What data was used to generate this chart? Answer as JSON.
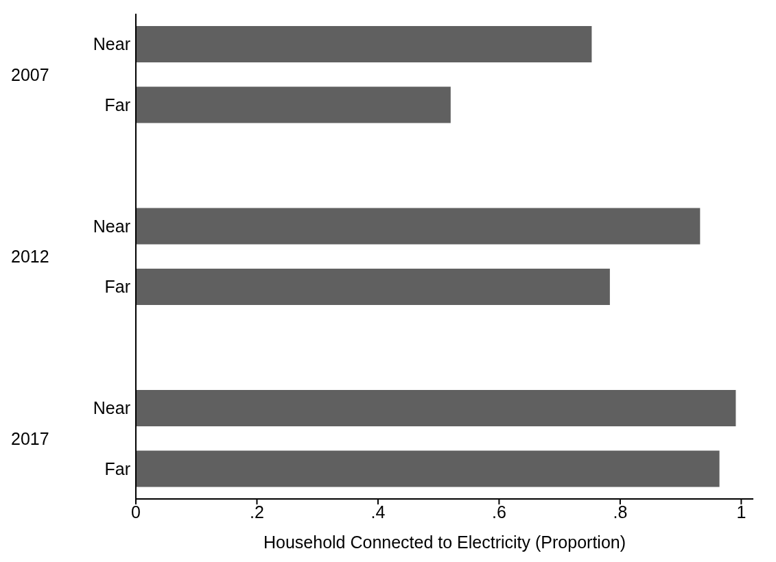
{
  "chart_data": {
    "type": "bar",
    "orientation": "horizontal",
    "categories": [
      "Near",
      "Far",
      null,
      "Near",
      "Far",
      null,
      "Near",
      "Far"
    ],
    "values": [
      0.753,
      0.52,
      null,
      0.932,
      0.783,
      null,
      0.991,
      0.964
    ],
    "color": "#606060",
    "xlabel": "Household Connected to Electricity (Proportion)",
    "xlim": [
      0,
      1.02
    ],
    "xticks": [
      0,
      {
        "value": 0.2,
        "label": ".2"
      },
      {
        "value": 0.4,
        "label": ".4"
      },
      {
        "value": 0.6,
        "label": ".6"
      },
      {
        "value": 0.8,
        "label": ".8"
      },
      1
    ],
    "annotations": [
      "2007",
      "2012",
      "2017"
    ],
    "grid": false,
    "legend": false
  }
}
